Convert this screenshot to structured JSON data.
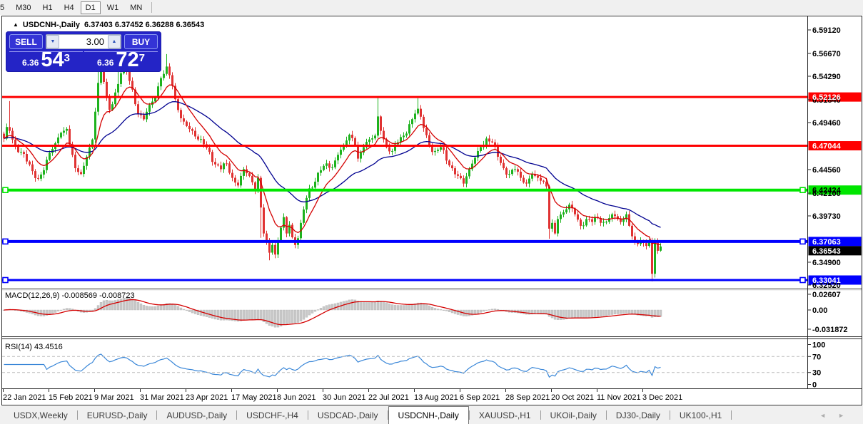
{
  "toolbar": {
    "timeframes": [
      "5",
      "M30",
      "H1",
      "H4",
      "D1",
      "W1",
      "MN"
    ],
    "active": "D1"
  },
  "title": {
    "collapse_icon": "▲",
    "symbol": "USDCNH-,Daily",
    "ohlc": "6.37403 6.37452 6.36288 6.36543"
  },
  "trade_panel": {
    "sell_label": "SELL",
    "buy_label": "BUY",
    "volume": "3.00",
    "spinner_down_icon": "▼",
    "spinner_up_icon": "▲",
    "sell_big_figure": "6.36",
    "sell_pips": "54",
    "sell_pipette": "3",
    "buy_big_figure": "6.36",
    "buy_pips": "72",
    "buy_pipette": "7"
  },
  "tabs": {
    "items": [
      "USDX,Weekly",
      "EURUSD-,Daily",
      "AUDUSD-,Daily",
      "USDCHF-,H4",
      "USDCAD-,Daily",
      "USDCNH-,Daily",
      "XAUUSD-,H1",
      "UKOil-,Daily",
      "DJ30-,Daily",
      "UK100-,H1"
    ],
    "active_index": 5,
    "nav_left": "◄",
    "nav_right": "►"
  },
  "chart_data": {
    "type": "candlestick",
    "symbol": "USDCNH-",
    "timeframe": "Daily",
    "ohlc_current": {
      "open": 6.37403,
      "high": 6.37452,
      "low": 6.36288,
      "close": 6.36543
    },
    "price_axis_ticks": [
      "6.59120",
      "6.56670",
      "6.54290",
      "6.51840",
      "6.49460",
      "6.44560",
      "6.42100",
      "6.39730",
      "6.34900",
      "6.32520"
    ],
    "level_labels": [
      {
        "text": "6.52126",
        "bg": "#fe0000",
        "fg": "#ffffff"
      },
      {
        "text": "6.47044",
        "bg": "#fe0000",
        "fg": "#ffffff"
      },
      {
        "text": "6.42424",
        "bg": "#00e600",
        "fg": "#000000"
      },
      {
        "text": "6.37063",
        "bg": "#0000ff",
        "fg": "#ffffff"
      },
      {
        "text": "6.36543",
        "bg": "#000000",
        "fg": "#ffffff"
      },
      {
        "text": "6.33041",
        "bg": "#0000ff",
        "fg": "#ffffff"
      }
    ],
    "horizontal_lines": [
      {
        "price": 6.52126,
        "color": "#fe0000",
        "width": 3,
        "handles": false
      },
      {
        "price": 6.47044,
        "color": "#fe0000",
        "width": 3,
        "handles": false
      },
      {
        "price": 6.42424,
        "color": "#00e600",
        "width": 4,
        "handles": true
      },
      {
        "price": 6.37063,
        "color": "#0000ff",
        "width": 4,
        "handles": true
      },
      {
        "price": 6.33041,
        "color": "#0000ff",
        "width": 3,
        "handles": true
      }
    ],
    "dates": [
      "22 Jan 2021",
      "15 Feb 2021",
      "9 Mar 2021",
      "31 Mar 2021",
      "23 Apr 2021",
      "17 May 2021",
      "8 Jun 2021",
      "30 Jun 2021",
      "22 Jul 2021",
      "13 Aug 2021",
      "6 Sep 2021",
      "28 Sep 2021",
      "20 Oct 2021",
      "11 Nov 2021",
      "3 Dec 2021"
    ],
    "candles": {
      "count": 231,
      "bull_color": "#1db21d",
      "bear_color": "#e03232",
      "close_anchors": [
        [
          0,
          6.478
        ],
        [
          1,
          6.49
        ],
        [
          2,
          6.486
        ],
        [
          4,
          6.47
        ],
        [
          6,
          6.464
        ],
        [
          8,
          6.454
        ],
        [
          10,
          6.444
        ],
        [
          12,
          6.436
        ],
        [
          14,
          6.445
        ],
        [
          16,
          6.463
        ],
        [
          18,
          6.473
        ],
        [
          20,
          6.484
        ],
        [
          22,
          6.488
        ],
        [
          24,
          6.461
        ],
        [
          25,
          6.447
        ],
        [
          27,
          6.441
        ],
        [
          29,
          6.459
        ],
        [
          31,
          6.477
        ],
        [
          32,
          6.506
        ],
        [
          33,
          6.536
        ],
        [
          34,
          6.55
        ],
        [
          35,
          6.537
        ],
        [
          36,
          6.521
        ],
        [
          37,
          6.508
        ],
        [
          39,
          6.526
        ],
        [
          41,
          6.546
        ],
        [
          43,
          6.548
        ],
        [
          45,
          6.529
        ],
        [
          47,
          6.504
        ],
        [
          49,
          6.498
        ],
        [
          51,
          6.513
        ],
        [
          53,
          6.521
        ],
        [
          55,
          6.541
        ],
        [
          57,
          6.553
        ],
        [
          58,
          6.544
        ],
        [
          60,
          6.519
        ],
        [
          62,
          6.499
        ],
        [
          64,
          6.491
        ],
        [
          66,
          6.486
        ],
        [
          68,
          6.477
        ],
        [
          70,
          6.472
        ],
        [
          72,
          6.464
        ],
        [
          74,
          6.451
        ],
        [
          76,
          6.446
        ],
        [
          78,
          6.452
        ],
        [
          80,
          6.437
        ],
        [
          82,
          6.429
        ],
        [
          84,
          6.446
        ],
        [
          86,
          6.439
        ],
        [
          88,
          6.424
        ],
        [
          89,
          6.437
        ],
        [
          90,
          6.406
        ],
        [
          91,
          6.379
        ],
        [
          92,
          6.371
        ],
        [
          93,
          6.359
        ],
        [
          94,
          6.367
        ],
        [
          95,
          6.357
        ],
        [
          96,
          6.371
        ],
        [
          97,
          6.385
        ],
        [
          98,
          6.396
        ],
        [
          99,
          6.379
        ],
        [
          100,
          6.388
        ],
        [
          101,
          6.375
        ],
        [
          102,
          6.367
        ],
        [
          103,
          6.374
        ],
        [
          104,
          6.39
        ],
        [
          105,
          6.404
        ],
        [
          106,
          6.416
        ],
        [
          107,
          6.426
        ],
        [
          109,
          6.433
        ],
        [
          111,
          6.445
        ],
        [
          113,
          6.452
        ],
        [
          115,
          6.448
        ],
        [
          117,
          6.461
        ],
        [
          119,
          6.471
        ],
        [
          121,
          6.482
        ],
        [
          123,
          6.471
        ],
        [
          124,
          6.457
        ],
        [
          126,
          6.469
        ],
        [
          128,
          6.477
        ],
        [
          130,
          6.481
        ],
        [
          131,
          6.501
        ],
        [
          132,
          6.486
        ],
        [
          134,
          6.469
        ],
        [
          136,
          6.465
        ],
        [
          138,
          6.474
        ],
        [
          140,
          6.481
        ],
        [
          142,
          6.493
        ],
        [
          144,
          6.504
        ],
        [
          145,
          6.509
        ],
        [
          147,
          6.489
        ],
        [
          149,
          6.47
        ],
        [
          151,
          6.465
        ],
        [
          153,
          6.469
        ],
        [
          155,
          6.455
        ],
        [
          157,
          6.447
        ],
        [
          159,
          6.439
        ],
        [
          161,
          6.431
        ],
        [
          163,
          6.446
        ],
        [
          165,
          6.458
        ],
        [
          167,
          6.469
        ],
        [
          169,
          6.478
        ],
        [
          171,
          6.474
        ],
        [
          173,
          6.459
        ],
        [
          175,
          6.447
        ],
        [
          177,
          6.441
        ],
        [
          179,
          6.446
        ],
        [
          181,
          6.437
        ],
        [
          183,
          6.431
        ],
        [
          185,
          6.441
        ],
        [
          187,
          6.437
        ],
        [
          189,
          6.433
        ],
        [
          190,
          6.428
        ],
        [
          191,
          6.384
        ],
        [
          192,
          6.39
        ],
        [
          193,
          6.379
        ],
        [
          194,
          6.394
        ],
        [
          196,
          6.401
        ],
        [
          198,
          6.409
        ],
        [
          200,
          6.399
        ],
        [
          202,
          6.387
        ],
        [
          204,
          6.394
        ],
        [
          206,
          6.391
        ],
        [
          208,
          6.395
        ],
        [
          210,
          6.391
        ],
        [
          212,
          6.395
        ],
        [
          214,
          6.397
        ],
        [
          216,
          6.391
        ],
        [
          218,
          6.399
        ],
        [
          219,
          6.387
        ],
        [
          220,
          6.376
        ],
        [
          221,
          6.371
        ],
        [
          222,
          6.368
        ],
        [
          223,
          6.371
        ],
        [
          224,
          6.369
        ],
        [
          225,
          6.366
        ],
        [
          226,
          6.371
        ],
        [
          227,
          6.337
        ],
        [
          228,
          6.371
        ],
        [
          229,
          6.361
        ],
        [
          230,
          6.3654
        ]
      ],
      "wick_overrides": {
        "2": {
          "high": 6.517
        },
        "33": {
          "high": 6.569
        },
        "40": {
          "high": 6.568
        },
        "57": {
          "high": 6.566
        },
        "90": {
          "low": 6.3745
        },
        "93": {
          "low": 6.351
        },
        "131": {
          "high": 6.5212
        },
        "145": {
          "high": 6.52
        },
        "191": {
          "low": 6.3735
        },
        "227": {
          "low": 6.329
        }
      }
    },
    "moving_averages": [
      {
        "period": 10,
        "color": "#d40000"
      },
      {
        "period": 34,
        "color": "#000090"
      }
    ],
    "macd": {
      "display": "MACD(12,26,9) -0.008569 -0.008723",
      "params": [
        12,
        26,
        9
      ],
      "values": [
        -0.008569,
        -0.008723
      ],
      "scale_labels": [
        "0.02607",
        "0.00",
        "-0.031872"
      ],
      "scale_values": [
        0.02607,
        0,
        -0.031872
      ],
      "hist_color": "#c9c9c9",
      "signal_color": "#d40000"
    },
    "rsi": {
      "display": "RSI(14) 43.4516",
      "period": 14,
      "value": 43.4516,
      "scale_labels": [
        "100",
        "70",
        "30",
        "0"
      ],
      "scale_values": [
        100,
        70,
        30,
        0
      ],
      "levels": [
        70,
        30
      ],
      "line_color": "#3a87d8",
      "level_color": "#bcbcbc"
    }
  }
}
